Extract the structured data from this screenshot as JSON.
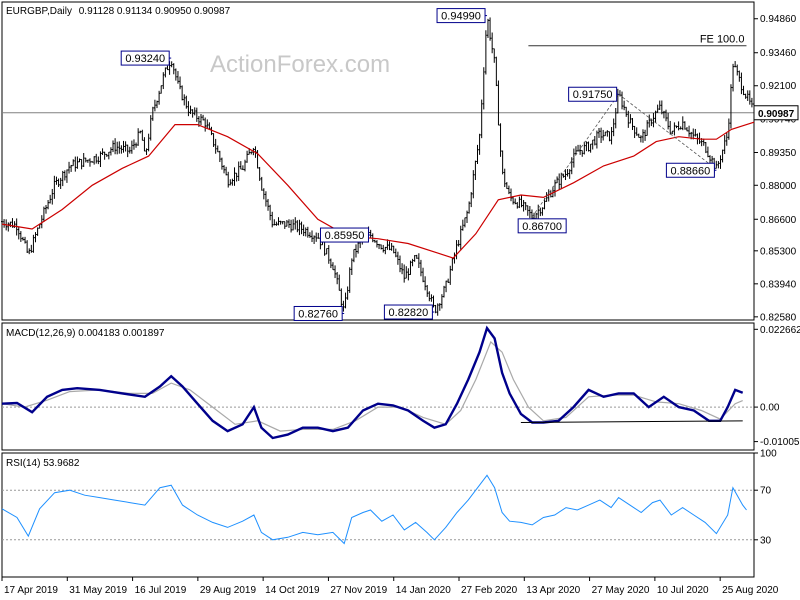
{
  "chart_data": {
    "type": "candlestick",
    "symbol_title": "EURGBP,Daily",
    "ohlc_readout": "0.91128 0.91134 0.90950 0.90987",
    "watermark": "ActionForex.com",
    "colors": {
      "price": "#000000",
      "sma": "#cc0000",
      "macd_line": "#00008b",
      "macd_signal": "#a9a9a9",
      "rsi": "#1e90ff",
      "callout_border": "#00008b",
      "grid_text": "#000000",
      "axis_line": "#000000",
      "ref_line": "#808080"
    },
    "x_labels": [
      "17 Apr 2019",
      "31 May 2019",
      "16 Jul 2019",
      "29 Aug 2019",
      "14 Oct 2019",
      "27 Nov 2019",
      "14 Jan 2020",
      "27 Feb 2020",
      "13 Apr 2020",
      "27 May 2020",
      "10 Jul 2020",
      "25 Aug 2020"
    ],
    "price_panel": {
      "y_ticks": [
        0.9486,
        0.9346,
        0.921,
        0.9074,
        0.8935,
        0.88,
        0.866,
        0.853,
        0.8394,
        0.8258
      ],
      "y_tick_labels": [
        "0.94860",
        "0.93460",
        "0.92100",
        "0.90740",
        "0.89350",
        "0.88000",
        "0.86600",
        "0.85300",
        "0.83940",
        "0.82580"
      ],
      "ylim": [
        0.8245,
        0.9555
      ],
      "current_value": 0.90987,
      "current_label": "0.90987",
      "fe_label": "FE 100.0",
      "fe_value": 0.9375,
      "fe_range": [
        0.7,
        0.99
      ],
      "price_path": [
        [
          0.0,
          0.865
        ],
        [
          0.02,
          0.8635
        ],
        [
          0.035,
          0.851
        ],
        [
          0.05,
          0.864
        ],
        [
          0.07,
          0.88
        ],
        [
          0.09,
          0.888
        ],
        [
          0.11,
          0.89
        ],
        [
          0.13,
          0.892
        ],
        [
          0.15,
          0.896
        ],
        [
          0.17,
          0.894
        ],
        [
          0.185,
          0.902
        ],
        [
          0.19,
          0.891
        ],
        [
          0.2,
          0.91
        ],
        [
          0.215,
          0.925
        ],
        [
          0.225,
          0.9324
        ],
        [
          0.235,
          0.92
        ],
        [
          0.25,
          0.91
        ],
        [
          0.27,
          0.906
        ],
        [
          0.285,
          0.895
        ],
        [
          0.3,
          0.882
        ],
        [
          0.32,
          0.887
        ],
        [
          0.335,
          0.897
        ],
        [
          0.345,
          0.88
        ],
        [
          0.36,
          0.864
        ],
        [
          0.38,
          0.864
        ],
        [
          0.4,
          0.862
        ],
        [
          0.42,
          0.859
        ],
        [
          0.44,
          0.847
        ],
        [
          0.455,
          0.8276
        ],
        [
          0.465,
          0.85
        ],
        [
          0.48,
          0.859
        ],
        [
          0.49,
          0.8595
        ],
        [
          0.505,
          0.855
        ],
        [
          0.52,
          0.853
        ],
        [
          0.535,
          0.842
        ],
        [
          0.55,
          0.85
        ],
        [
          0.565,
          0.838
        ],
        [
          0.575,
          0.8282
        ],
        [
          0.59,
          0.838
        ],
        [
          0.605,
          0.855
        ],
        [
          0.62,
          0.87
        ],
        [
          0.635,
          0.9
        ],
        [
          0.645,
          0.9499
        ],
        [
          0.655,
          0.93
        ],
        [
          0.665,
          0.885
        ],
        [
          0.675,
          0.875
        ],
        [
          0.69,
          0.872
        ],
        [
          0.705,
          0.867
        ],
        [
          0.72,
          0.872
        ],
        [
          0.735,
          0.88
        ],
        [
          0.75,
          0.885
        ],
        [
          0.765,
          0.894
        ],
        [
          0.78,
          0.896
        ],
        [
          0.795,
          0.901
        ],
        [
          0.81,
          0.9
        ],
        [
          0.82,
          0.9175
        ],
        [
          0.835,
          0.906
        ],
        [
          0.85,
          0.899
        ],
        [
          0.865,
          0.908
        ],
        [
          0.875,
          0.912
        ],
        [
          0.89,
          0.902
        ],
        [
          0.905,
          0.906
        ],
        [
          0.92,
          0.9
        ],
        [
          0.935,
          0.896
        ],
        [
          0.95,
          0.8866
        ],
        [
          0.965,
          0.901
        ],
        [
          0.972,
          0.93
        ],
        [
          0.985,
          0.92
        ],
        [
          1.0,
          0.9099
        ]
      ],
      "sma_path": [
        [
          0.0,
          0.864
        ],
        [
          0.04,
          0.862
        ],
        [
          0.08,
          0.87
        ],
        [
          0.12,
          0.88
        ],
        [
          0.16,
          0.887
        ],
        [
          0.195,
          0.892
        ],
        [
          0.23,
          0.905
        ],
        [
          0.26,
          0.905
        ],
        [
          0.3,
          0.9
        ],
        [
          0.34,
          0.893
        ],
        [
          0.38,
          0.88
        ],
        [
          0.42,
          0.866
        ],
        [
          0.46,
          0.859
        ],
        [
          0.5,
          0.858
        ],
        [
          0.54,
          0.856
        ],
        [
          0.58,
          0.852
        ],
        [
          0.6,
          0.85
        ],
        [
          0.63,
          0.86
        ],
        [
          0.66,
          0.874
        ],
        [
          0.69,
          0.876
        ],
        [
          0.72,
          0.875
        ],
        [
          0.76,
          0.881
        ],
        [
          0.8,
          0.888
        ],
        [
          0.84,
          0.892
        ],
        [
          0.87,
          0.898
        ],
        [
          0.9,
          0.9
        ],
        [
          0.93,
          0.899
        ],
        [
          0.95,
          0.899
        ],
        [
          0.97,
          0.903
        ],
        [
          1.0,
          0.906
        ]
      ],
      "callouts": [
        {
          "label": "0.93240",
          "value": 0.9324,
          "x": 0.225,
          "side": "above-left"
        },
        {
          "label": "0.94990",
          "value": 0.9499,
          "x": 0.645,
          "side": "above-left"
        },
        {
          "label": "0.91750",
          "value": 0.9175,
          "x": 0.82,
          "side": "above-left"
        },
        {
          "label": "0.85950",
          "value": 0.8595,
          "x": 0.49,
          "side": "above-left"
        },
        {
          "label": "0.82760",
          "value": 0.8276,
          "x": 0.455,
          "side": "below-left"
        },
        {
          "label": "0.82820",
          "value": 0.8282,
          "x": 0.575,
          "side": "below-left"
        },
        {
          "label": "0.86700",
          "value": 0.867,
          "x": 0.705,
          "side": "below-right"
        },
        {
          "label": "0.88660",
          "value": 0.8866,
          "x": 0.95,
          "side": "below-left"
        }
      ],
      "dashed_lines": [
        [
          [
            0.705,
            0.867
          ],
          [
            0.82,
            0.9175
          ]
        ],
        [
          [
            0.82,
            0.9175
          ],
          [
            0.95,
            0.8866
          ]
        ]
      ]
    },
    "macd_panel": {
      "title": "MACD(12,26,9) 0.004183 0.001897",
      "y_tick_labels": [
        "0.022662",
        "0.00",
        "-0.010052"
      ],
      "y_ticks": [
        0.022662,
        0.0,
        -0.010052
      ],
      "ylim": [
        -0.0125,
        0.0245
      ],
      "macd_path": [
        [
          0.0,
          0.001
        ],
        [
          0.02,
          0.0012
        ],
        [
          0.04,
          -0.0015
        ],
        [
          0.06,
          0.003
        ],
        [
          0.08,
          0.005
        ],
        [
          0.1,
          0.0055
        ],
        [
          0.13,
          0.005
        ],
        [
          0.16,
          0.004
        ],
        [
          0.19,
          0.003
        ],
        [
          0.21,
          0.006
        ],
        [
          0.225,
          0.009
        ],
        [
          0.24,
          0.006
        ],
        [
          0.26,
          0.001
        ],
        [
          0.28,
          -0.004
        ],
        [
          0.3,
          -0.007
        ],
        [
          0.32,
          -0.005
        ],
        [
          0.335,
          0.0
        ],
        [
          0.345,
          -0.006
        ],
        [
          0.36,
          -0.009
        ],
        [
          0.38,
          -0.008
        ],
        [
          0.4,
          -0.006
        ],
        [
          0.42,
          -0.006
        ],
        [
          0.44,
          -0.007
        ],
        [
          0.46,
          -0.006
        ],
        [
          0.48,
          -0.001
        ],
        [
          0.5,
          0.001
        ],
        [
          0.52,
          0.0005
        ],
        [
          0.54,
          -0.001
        ],
        [
          0.56,
          -0.004
        ],
        [
          0.575,
          -0.006
        ],
        [
          0.59,
          -0.005
        ],
        [
          0.605,
          0.001
        ],
        [
          0.62,
          0.008
        ],
        [
          0.635,
          0.016
        ],
        [
          0.645,
          0.023
        ],
        [
          0.655,
          0.02
        ],
        [
          0.665,
          0.01
        ],
        [
          0.675,
          0.004
        ],
        [
          0.69,
          -0.002
        ],
        [
          0.705,
          -0.0045
        ],
        [
          0.72,
          -0.0045
        ],
        [
          0.74,
          -0.004
        ],
        [
          0.76,
          0.0
        ],
        [
          0.78,
          0.005
        ],
        [
          0.8,
          0.003
        ],
        [
          0.82,
          0.004
        ],
        [
          0.84,
          0.004
        ],
        [
          0.86,
          0.0
        ],
        [
          0.88,
          0.003
        ],
        [
          0.9,
          0.0
        ],
        [
          0.92,
          -0.001
        ],
        [
          0.94,
          -0.004
        ],
        [
          0.955,
          -0.004
        ],
        [
          0.965,
          0.0
        ],
        [
          0.975,
          0.005
        ],
        [
          0.985,
          0.0042
        ]
      ],
      "signal_path": [
        [
          0.0,
          0.001
        ],
        [
          0.03,
          0.0
        ],
        [
          0.06,
          0.002
        ],
        [
          0.09,
          0.0045
        ],
        [
          0.13,
          0.005
        ],
        [
          0.17,
          0.004
        ],
        [
          0.2,
          0.004
        ],
        [
          0.225,
          0.007
        ],
        [
          0.25,
          0.005
        ],
        [
          0.28,
          0.0
        ],
        [
          0.31,
          -0.005
        ],
        [
          0.34,
          -0.004
        ],
        [
          0.37,
          -0.007
        ],
        [
          0.4,
          -0.0065
        ],
        [
          0.44,
          -0.0065
        ],
        [
          0.47,
          -0.004
        ],
        [
          0.5,
          0.0
        ],
        [
          0.53,
          0.0
        ],
        [
          0.56,
          -0.003
        ],
        [
          0.59,
          -0.005
        ],
        [
          0.61,
          -0.001
        ],
        [
          0.63,
          0.008
        ],
        [
          0.65,
          0.019
        ],
        [
          0.665,
          0.016
        ],
        [
          0.68,
          0.008
        ],
        [
          0.7,
          0.0
        ],
        [
          0.72,
          -0.004
        ],
        [
          0.75,
          -0.003
        ],
        [
          0.78,
          0.003
        ],
        [
          0.81,
          0.0035
        ],
        [
          0.84,
          0.0035
        ],
        [
          0.87,
          0.0015
        ],
        [
          0.9,
          0.001
        ],
        [
          0.93,
          -0.001
        ],
        [
          0.955,
          -0.0035
        ],
        [
          0.975,
          0.001
        ],
        [
          0.985,
          0.0019
        ]
      ],
      "support_line": [
        [
          0.69,
          -0.0045
        ],
        [
          0.985,
          -0.004
        ]
      ]
    },
    "rsi_panel": {
      "title": "RSI(14) 53.9682",
      "y_ticks": [
        100,
        70,
        30,
        0
      ],
      "y_tick_labels": [
        "100",
        "70",
        "30",
        "0"
      ],
      "levels": [
        70,
        30
      ],
      "ylim": [
        0,
        100
      ],
      "rsi_path": [
        [
          0.0,
          55
        ],
        [
          0.02,
          48
        ],
        [
          0.035,
          33
        ],
        [
          0.05,
          55
        ],
        [
          0.07,
          68
        ],
        [
          0.09,
          70
        ],
        [
          0.11,
          66
        ],
        [
          0.13,
          64
        ],
        [
          0.15,
          62
        ],
        [
          0.17,
          60
        ],
        [
          0.19,
          58
        ],
        [
          0.21,
          72
        ],
        [
          0.225,
          74
        ],
        [
          0.24,
          58
        ],
        [
          0.26,
          50
        ],
        [
          0.28,
          44
        ],
        [
          0.3,
          40
        ],
        [
          0.32,
          45
        ],
        [
          0.335,
          50
        ],
        [
          0.345,
          36
        ],
        [
          0.36,
          30
        ],
        [
          0.38,
          32
        ],
        [
          0.4,
          36
        ],
        [
          0.42,
          34
        ],
        [
          0.44,
          36
        ],
        [
          0.455,
          27
        ],
        [
          0.465,
          48
        ],
        [
          0.48,
          52
        ],
        [
          0.49,
          54
        ],
        [
          0.505,
          45
        ],
        [
          0.52,
          50
        ],
        [
          0.535,
          38
        ],
        [
          0.55,
          44
        ],
        [
          0.565,
          36
        ],
        [
          0.575,
          30
        ],
        [
          0.59,
          40
        ],
        [
          0.605,
          52
        ],
        [
          0.62,
          62
        ],
        [
          0.635,
          74
        ],
        [
          0.645,
          82
        ],
        [
          0.655,
          72
        ],
        [
          0.665,
          52
        ],
        [
          0.675,
          45
        ],
        [
          0.69,
          44
        ],
        [
          0.705,
          42
        ],
        [
          0.72,
          48
        ],
        [
          0.735,
          50
        ],
        [
          0.75,
          56
        ],
        [
          0.765,
          54
        ],
        [
          0.78,
          58
        ],
        [
          0.795,
          62
        ],
        [
          0.81,
          56
        ],
        [
          0.82,
          64
        ],
        [
          0.835,
          58
        ],
        [
          0.85,
          52
        ],
        [
          0.865,
          60
        ],
        [
          0.875,
          62
        ],
        [
          0.89,
          50
        ],
        [
          0.905,
          56
        ],
        [
          0.92,
          50
        ],
        [
          0.935,
          44
        ],
        [
          0.95,
          35
        ],
        [
          0.965,
          50
        ],
        [
          0.972,
          72
        ],
        [
          0.985,
          58
        ],
        [
          0.99,
          54
        ]
      ]
    }
  }
}
